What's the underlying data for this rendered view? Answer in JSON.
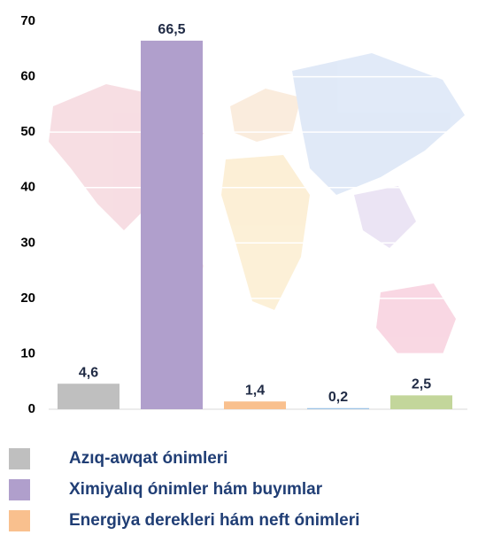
{
  "chart_data": {
    "type": "bar",
    "categories": [
      "Azıq-awqat ónimleri",
      "Ximiyalıq ónimler hám buyımlar",
      "Energiya derekleri hám neft ónimleri",
      null,
      null
    ],
    "values": [
      4.6,
      66.5,
      1.4,
      0.2,
      2.5
    ],
    "value_labels": [
      "4,6",
      "66,5",
      "1,4",
      "0,2",
      "2,5"
    ],
    "colors": [
      "#bfbfbf",
      "#b09fcc",
      "#f9c08e",
      "#9dc3e6",
      "#c3d69b"
    ],
    "ylim": [
      0,
      70
    ],
    "yticks": [
      0,
      10,
      20,
      30,
      40,
      50,
      60,
      70
    ],
    "grid": true
  }
}
